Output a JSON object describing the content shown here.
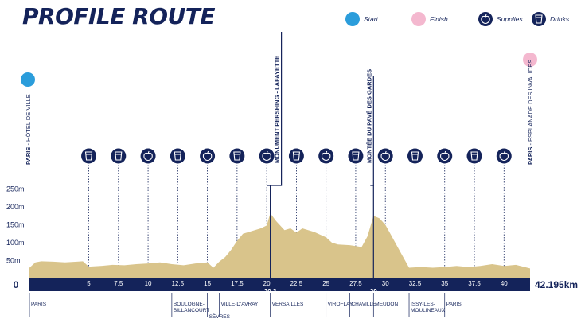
{
  "title": "PROFILE ROUTE",
  "legend": [
    {
      "label": "Start",
      "icon": "start-dot-icon",
      "color": "#2b9ddb"
    },
    {
      "label": "Finish",
      "icon": "finish-dot-icon",
      "color": "#f4b8cf"
    },
    {
      "label": "Supplies",
      "icon": "apple-icon",
      "color": "#14235a"
    },
    {
      "label": "Drinks",
      "icon": "cup-icon",
      "color": "#14235a"
    }
  ],
  "colors": {
    "navy": "#14235a",
    "profile_fill": "#d9c48b",
    "start": "#2b9ddb",
    "finish": "#f4b8cf"
  },
  "chart_data": {
    "type": "area",
    "xlabel": "",
    "ylabel": "",
    "xlim": [
      0,
      42.195
    ],
    "ylim": [
      0,
      250
    ],
    "y_ticks": [
      0,
      50,
      100,
      150,
      200,
      250
    ],
    "y_tick_labels": [
      "0",
      "50m",
      "100m",
      "150m",
      "200m",
      "250m"
    ],
    "x_ticks": [
      5,
      7.5,
      10,
      12.5,
      15,
      17.5,
      20,
      22.5,
      25,
      27.5,
      30,
      32.5,
      35,
      37.5,
      40
    ],
    "x_tick_labels": [
      "5",
      "7.5",
      "10",
      "12.5",
      "15",
      "17.5",
      "20",
      "22.5",
      "25",
      "27.5",
      "30",
      "32.5",
      "35",
      "37.5",
      "40"
    ],
    "x_end_label": "42.195km",
    "x_start_label": "0",
    "x_special_ticks": [
      {
        "x": 20.3,
        "label": "20.3"
      },
      {
        "x": 29,
        "label": "29"
      }
    ],
    "grid": "vertical dotted at ticks",
    "elevation": {
      "x": [
        0,
        0.5,
        1,
        2,
        3,
        4,
        4.5,
        5,
        6,
        7,
        8,
        9,
        10,
        11,
        12,
        13,
        14,
        15,
        15.5,
        16,
        16.5,
        17,
        17.5,
        18,
        18.5,
        19,
        19.5,
        20,
        20.3,
        20.8,
        21.5,
        22,
        22.5,
        23,
        24,
        25,
        25.5,
        26,
        27,
        28,
        28.5,
        29,
        29.5,
        30,
        30.5,
        31,
        32,
        33,
        34,
        35,
        36,
        37,
        38,
        39,
        40,
        41,
        42.195
      ],
      "y": [
        30,
        45,
        48,
        47,
        45,
        47,
        48,
        33,
        35,
        38,
        37,
        40,
        42,
        45,
        40,
        37,
        42,
        45,
        30,
        47,
        60,
        80,
        105,
        125,
        130,
        135,
        140,
        148,
        182,
        160,
        135,
        140,
        128,
        140,
        130,
        115,
        100,
        95,
        93,
        88,
        118,
        175,
        168,
        150,
        120,
        90,
        30,
        32,
        30,
        32,
        35,
        32,
        35,
        40,
        35,
        38,
        28
      ]
    },
    "stations": [
      {
        "x": 5,
        "type": "Drinks"
      },
      {
        "x": 7.5,
        "type": "Drinks"
      },
      {
        "x": 10,
        "type": "Supplies"
      },
      {
        "x": 12.5,
        "type": "Drinks"
      },
      {
        "x": 15,
        "type": "Supplies"
      },
      {
        "x": 17.5,
        "type": "Drinks"
      },
      {
        "x": 20,
        "type": "Supplies"
      },
      {
        "x": 22.5,
        "type": "Drinks"
      },
      {
        "x": 25,
        "type": "Supplies"
      },
      {
        "x": 27.5,
        "type": "Drinks"
      },
      {
        "x": 30,
        "type": "Supplies"
      },
      {
        "x": 32.5,
        "type": "Drinks"
      },
      {
        "x": 35,
        "type": "Supplies"
      },
      {
        "x": 37.5,
        "type": "Drinks"
      },
      {
        "x": 40,
        "type": "Supplies"
      }
    ],
    "climbs": [
      {
        "x": 20.3,
        "label": "MONUMENT PERSHING - LAFAYETTE"
      },
      {
        "x": 29,
        "label": "MONTÉE DU PAVÉ DES GARDES"
      }
    ],
    "start": {
      "x": 0,
      "label_bold": "PARIS",
      "label": " - HÔTEL DE VILLE"
    },
    "finish": {
      "x": 42.195,
      "label_bold": "PARIS",
      "label": " - ESPLANADE DES INVALIDES"
    },
    "places": [
      {
        "x": 0,
        "lines": [
          "PARIS"
        ]
      },
      {
        "x": 12,
        "lines": [
          "BOULOGNE-",
          "BILLANCOURT"
        ]
      },
      {
        "x": 15,
        "lines": [
          "",
          "",
          "SÈVRES"
        ]
      },
      {
        "x": 16,
        "lines": [
          "VILLE-D'AVRAY"
        ]
      },
      {
        "x": 20.3,
        "lines": [
          "VERSAILLES"
        ]
      },
      {
        "x": 25,
        "lines": [
          "VIROFLAY"
        ]
      },
      {
        "x": 27,
        "lines": [
          "CHAVILLE"
        ]
      },
      {
        "x": 29,
        "lines": [
          "MEUDON"
        ]
      },
      {
        "x": 32,
        "lines": [
          "ISSY-LES-",
          "MOULINEAUX"
        ]
      },
      {
        "x": 35,
        "lines": [
          "PARIS"
        ]
      }
    ]
  }
}
